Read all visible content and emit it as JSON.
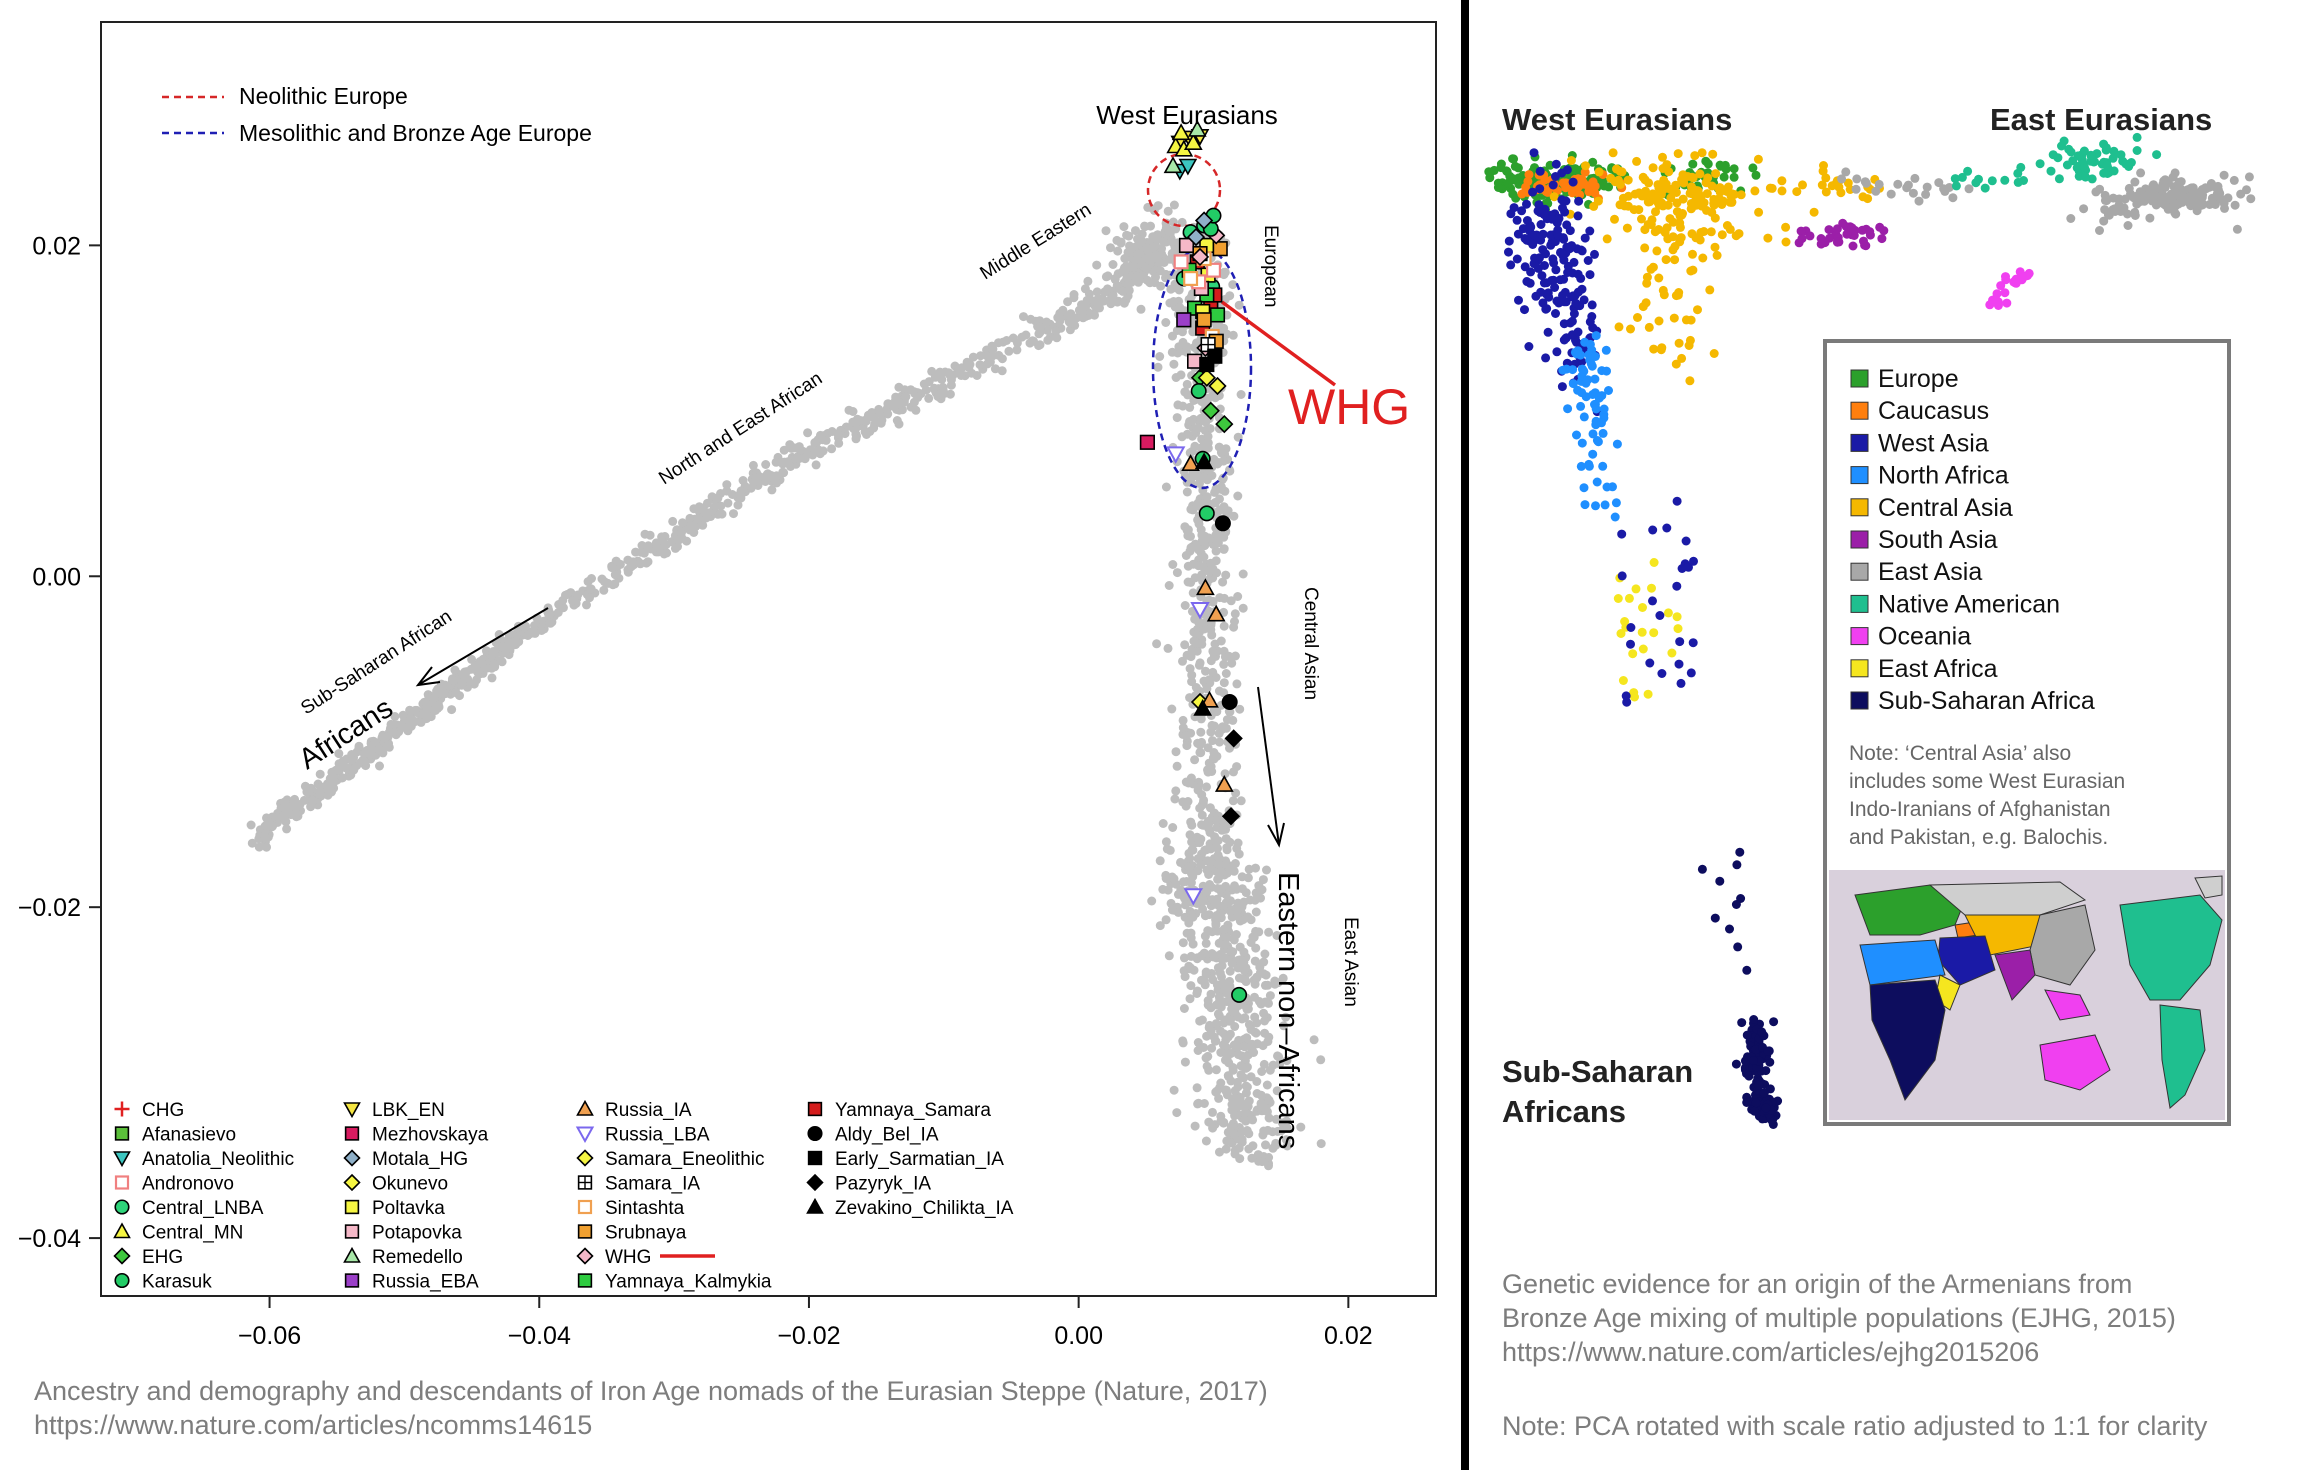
{
  "divider_color": "#000000",
  "left_panel": {
    "x_ticks": [
      "−0.06",
      "−0.04",
      "−0.02",
      "0.00",
      "0.02"
    ],
    "y_ticks": [
      "0.02",
      "0.00",
      "−0.02",
      "−0.04"
    ],
    "ellipse_legend": [
      {
        "label": "Neolithic Europe",
        "color": "#d62728"
      },
      {
        "label": "Mesolithic and Bronze Age Europe",
        "color": "#1f1fb4"
      }
    ],
    "cluster_labels": {
      "west_eurasians": "West Eurasians",
      "middle_eastern": "Middle Eastern",
      "european": "European",
      "north_east_african": "North and East African",
      "sub_saharan_african": "Sub-Saharan African",
      "africans": "Africans",
      "central_asian": "Central Asian",
      "east_asian": "East Asian",
      "eastern_non_africans": "Eastern non–Africans"
    },
    "annotation": {
      "text": "WHG",
      "color": "#e02020"
    },
    "legend": [
      {
        "label": "CHG",
        "marker": "plus",
        "fill": "#e02020"
      },
      {
        "label": "Afanasievo",
        "marker": "square",
        "fill": "#5bbf3a"
      },
      {
        "label": "Anatolia_Neolithic",
        "marker": "tri-down",
        "fill": "#3cc6c0"
      },
      {
        "label": "Andronovo",
        "marker": "square-open",
        "fill": "#f08080"
      },
      {
        "label": "Central_LNBA",
        "marker": "circle",
        "fill": "#2ed47a"
      },
      {
        "label": "Central_MN",
        "marker": "tri-up",
        "fill": "#f5f542"
      },
      {
        "label": "EHG",
        "marker": "diamond",
        "fill": "#3ec83e"
      },
      {
        "label": "Karasuk",
        "marker": "circle",
        "fill": "#22cc66"
      },
      {
        "label": "LBK_EN",
        "marker": "tri-down",
        "fill": "#f5e642"
      },
      {
        "label": "Mezhovskaya",
        "marker": "square",
        "fill": "#d81b60"
      },
      {
        "label": "Motala_HG",
        "marker": "diamond",
        "fill": "#8fb0c8"
      },
      {
        "label": "Okunevo",
        "marker": "diamond",
        "fill": "#f5f542"
      },
      {
        "label": "Poltavka",
        "marker": "square",
        "fill": "#f5f542"
      },
      {
        "label": "Potapovka",
        "marker": "square",
        "fill": "#f5b8c8"
      },
      {
        "label": "Remedello",
        "marker": "tri-up",
        "fill": "#a8e8a8"
      },
      {
        "label": "Russia_EBA",
        "marker": "square",
        "fill": "#9b3fc8"
      },
      {
        "label": "Russia_IA",
        "marker": "tri-up",
        "fill": "#f0a050"
      },
      {
        "label": "Russia_LBA",
        "marker": "tri-down-open",
        "fill": "#7b68ee"
      },
      {
        "label": "Samara_Eneolithic",
        "marker": "diamond",
        "fill": "#f5f542"
      },
      {
        "label": "Samara_IA",
        "marker": "square-cross",
        "fill": "#ffffff"
      },
      {
        "label": "Sintashta",
        "marker": "square-open",
        "fill": "#f0a050"
      },
      {
        "label": "Srubnaya",
        "marker": "square",
        "fill": "#f0a030"
      },
      {
        "label": "WHG",
        "marker": "diamond",
        "fill": "#f5b8c8"
      },
      {
        "label": "Yamnaya_Kalmykia",
        "marker": "square",
        "fill": "#2ecc40"
      },
      {
        "label": "Yamnaya_Samara",
        "marker": "square",
        "fill": "#d41c1c"
      },
      {
        "label": "Aldy_Bel_IA",
        "marker": "circle",
        "fill": "#000000"
      },
      {
        "label": "Early_Sarmatian_IA",
        "marker": "square",
        "fill": "#000000"
      },
      {
        "label": "Pazyryk_IA",
        "marker": "diamond",
        "fill": "#000000"
      },
      {
        "label": "Zevakino_Chilikta_IA",
        "marker": "tri-up",
        "fill": "#000000"
      }
    ],
    "caption": [
      "Ancestry and demography and descendants of Iron Age nomads of the Eurasian Steppe (Nature, 2017)",
      "https://www.nature.com/articles/ncomms14615"
    ]
  },
  "right_panel": {
    "corner_labels": {
      "west_eurasians": "West Eurasians",
      "east_eurasians": "East Eurasians",
      "sub_saharan_line1": "Sub-Saharan",
      "sub_saharan_line2": "Africans"
    },
    "legend": [
      {
        "label": "Europe",
        "color": "#2ca02c"
      },
      {
        "label": "Caucasus",
        "color": "#ff7f0e"
      },
      {
        "label": "West Asia",
        "color": "#1a1aa6"
      },
      {
        "label": "North Africa",
        "color": "#1f8fff"
      },
      {
        "label": "Central Asia",
        "color": "#f5b800"
      },
      {
        "label": "South Asia",
        "color": "#9b1fa8"
      },
      {
        "label": "East Asia",
        "color": "#a8a8a8"
      },
      {
        "label": "Native American",
        "color": "#1fbf8f"
      },
      {
        "label": "Oceania",
        "color": "#f040f0"
      },
      {
        "label": "East Africa",
        "color": "#f5e61f"
      },
      {
        "label": "Sub-Saharan Africa",
        "color": "#0d0d5e"
      }
    ],
    "note": [
      "Note: ‘Central Asia’ also",
      "includes some West Eurasian",
      "Indo-Iranians of Afghanistan",
      "and Pakistan, e.g. Balochis."
    ],
    "caption": [
      "Genetic evidence for an origin of the Armenians from",
      "Bronze Age mixing of multiple populations (EJHG, 2015)",
      "https://www.nature.com/articles/ejhg2015206"
    ],
    "note2": "Note: PCA rotated with scale ratio adjusted to 1:1 for clarity"
  },
  "chart_data": [
    {
      "type": "scatter",
      "title": "",
      "xlabel": "",
      "ylabel": "",
      "xlim": [
        -0.0725,
        0.0265
      ],
      "ylim": [
        -0.0435,
        0.0335
      ],
      "x_ticks": [
        -0.06,
        -0.04,
        -0.02,
        0.0,
        0.02
      ],
      "y_ticks": [
        0.02,
        0.0,
        -0.02,
        -0.04
      ],
      "grid": false,
      "legend_placement": "bottom",
      "background_cloud": {
        "color": "#bdbdbd",
        "clusters": [
          "Sub-Saharan African",
          "North and East African",
          "Middle Eastern",
          "European",
          "Central Asian",
          "East Asian"
        ]
      },
      "series": [
        {
          "name": "Anatolia_Neolithic",
          "points": [
            [
              0.0075,
              0.0245
            ],
            [
              0.0081,
              0.0248
            ]
          ]
        },
        {
          "name": "LBK_EN",
          "points": [
            [
              0.0075,
              0.0262
            ],
            [
              0.0082,
              0.0265
            ],
            [
              0.009,
              0.0266
            ]
          ]
        },
        {
          "name": "Central_MN",
          "points": [
            [
              0.0072,
              0.026
            ],
            [
              0.0078,
              0.0258
            ],
            [
              0.0085,
              0.0262
            ],
            [
              0.0076,
              0.0268
            ]
          ]
        },
        {
          "name": "Remedello",
          "points": [
            [
              0.007,
              0.0248
            ],
            [
              0.0088,
              0.027
            ]
          ]
        },
        {
          "name": "Central_LNBA",
          "points": [
            [
              0.0083,
              0.0208
            ],
            [
              0.0093,
              0.0212
            ],
            [
              0.0078,
              0.018
            ],
            [
              0.0099,
              0.0175
            ]
          ]
        },
        {
          "name": "Yamnaya_Samara",
          "points": [
            [
              0.0088,
              0.019
            ],
            [
              0.0098,
              0.0162
            ],
            [
              0.0101,
              0.017
            ],
            [
              0.0092,
              0.015
            ]
          ]
        },
        {
          "name": "Yamnaya_Kalmykia",
          "points": [
            [
              0.0082,
              0.0185
            ],
            [
              0.0095,
              0.017
            ],
            [
              0.0103,
              0.0158
            ],
            [
              0.0086,
              0.0162
            ]
          ]
        },
        {
          "name": "Poltavka",
          "points": [
            [
              0.0095,
              0.02
            ],
            [
              0.0096,
              0.0182
            ],
            [
              0.0092,
              0.016
            ]
          ]
        },
        {
          "name": "Potapovka",
          "points": [
            [
              0.008,
              0.02
            ],
            [
              0.0091,
              0.0174
            ],
            [
              0.0086,
              0.013
            ]
          ]
        },
        {
          "name": "Andronovo",
          "points": [
            [
              0.0076,
              0.019
            ],
            [
              0.0089,
              0.0178
            ],
            [
              0.01,
              0.0185
            ]
          ]
        },
        {
          "name": "Sintashta",
          "points": [
            [
              0.0083,
              0.018
            ],
            [
              0.0093,
              0.0192
            ],
            [
              0.0099,
              0.0145
            ]
          ]
        },
        {
          "name": "Srubnaya",
          "points": [
            [
              0.009,
              0.0195
            ],
            [
              0.0105,
              0.0198
            ],
            [
              0.0093,
              0.0155
            ],
            [
              0.0102,
              0.0142
            ]
          ]
        },
        {
          "name": "WHG",
          "points": [
            [
              0.009,
              0.0193
            ],
            [
              0.0102,
              0.0206
            ],
            [
              0.0094,
              0.0138
            ]
          ]
        },
        {
          "name": "EHG",
          "points": [
            [
              0.0098,
              0.01
            ],
            [
              0.009,
              0.012
            ],
            [
              0.0108,
              0.0092
            ]
          ]
        },
        {
          "name": "Karasuk",
          "points": [
            [
              0.0098,
              0.021
            ],
            [
              0.01,
              0.0218
            ],
            [
              0.0089,
              0.0112
            ],
            [
              0.0095,
              0.0038
            ],
            [
              0.0092,
              0.0071
            ],
            [
              0.0119,
              -0.0253
            ]
          ]
        },
        {
          "name": "Russia_EBA",
          "points": [
            [
              0.0078,
              0.0155
            ]
          ]
        },
        {
          "name": "Motala_HG",
          "points": [
            [
              0.0087,
              0.0205
            ],
            [
              0.0093,
              0.0215
            ]
          ]
        },
        {
          "name": "Okunevo",
          "points": [
            [
              0.009,
              -0.0076
            ]
          ]
        },
        {
          "name": "Samara_Eneolithic",
          "points": [
            [
              0.0095,
              0.012
            ],
            [
              0.0103,
              0.0115
            ]
          ]
        },
        {
          "name": "Samara_IA",
          "points": [
            [
              0.0096,
              0.014
            ]
          ]
        },
        {
          "name": "Mezhovskaya",
          "points": [
            [
              0.0051,
              0.0081
            ]
          ]
        },
        {
          "name": "Russia_IA",
          "points": [
            [
              0.0083,
              0.0068
            ],
            [
              0.0094,
              -0.0007
            ],
            [
              0.0102,
              -0.0023
            ],
            [
              0.0108,
              -0.0126
            ],
            [
              0.0097,
              -0.0075
            ]
          ]
        },
        {
          "name": "Russia_LBA",
          "points": [
            [
              0.0072,
              0.0074
            ],
            [
              0.009,
              -0.002
            ],
            [
              0.0085,
              -0.0193
            ]
          ]
        },
        {
          "name": "Aldy_Bel_IA",
          "points": [
            [
              0.0107,
              0.0032
            ],
            [
              0.0112,
              -0.0076
            ]
          ]
        },
        {
          "name": "Early_Sarmatian_IA",
          "points": [
            [
              0.0095,
              0.0128
            ],
            [
              0.0101,
              0.0133
            ]
          ]
        },
        {
          "name": "Pazyryk_IA",
          "points": [
            [
              0.0115,
              -0.0098
            ],
            [
              0.0113,
              -0.0145
            ]
          ]
        },
        {
          "name": "Zevakino_Chilikta_IA",
          "points": [
            [
              0.0093,
              0.0069
            ],
            [
              0.0092,
              -0.008
            ]
          ]
        }
      ]
    },
    {
      "type": "scatter",
      "title": "",
      "xlabel": "",
      "ylabel": "",
      "axes_shown": false,
      "legend_placement": "right",
      "series": [
        {
          "name": "Europe"
        },
        {
          "name": "Caucasus"
        },
        {
          "name": "West Asia"
        },
        {
          "name": "North Africa"
        },
        {
          "name": "Central Asia"
        },
        {
          "name": "South Asia"
        },
        {
          "name": "East Asia"
        },
        {
          "name": "Native American"
        },
        {
          "name": "Oceania"
        },
        {
          "name": "East Africa"
        },
        {
          "name": "Sub-Saharan Africa"
        }
      ]
    }
  ]
}
